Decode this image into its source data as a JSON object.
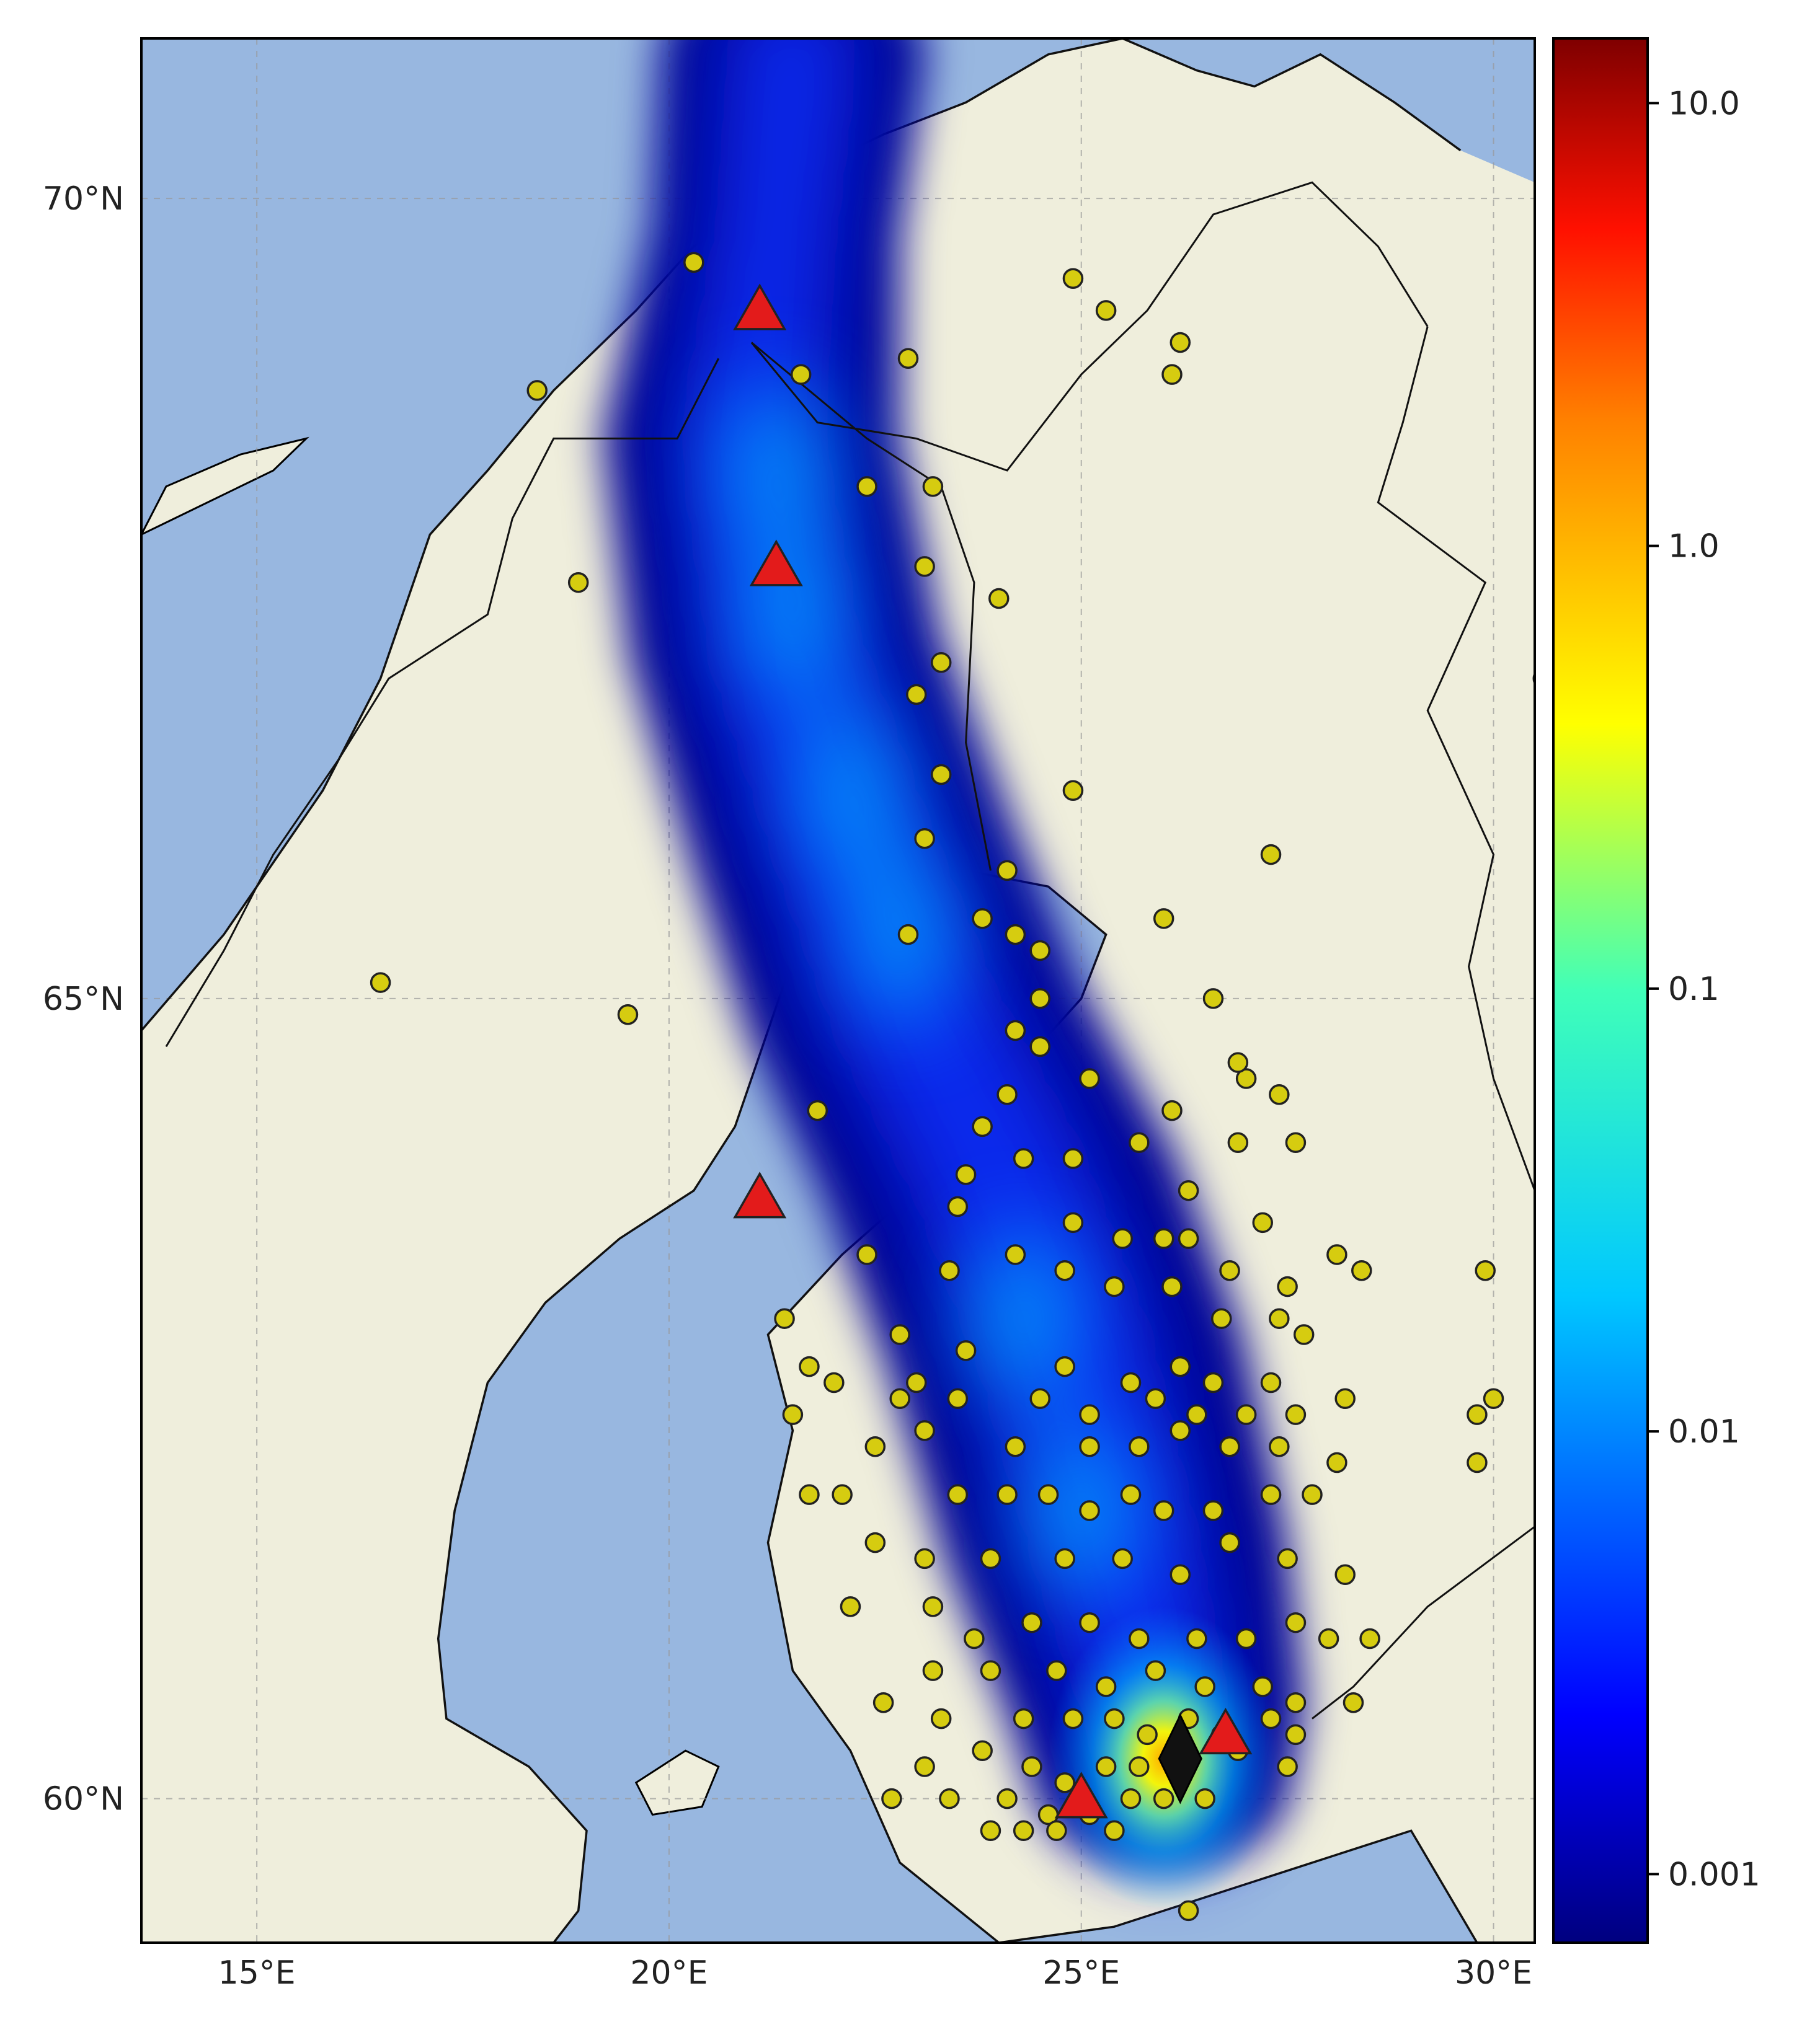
{
  "map": {
    "extent": {
      "lon_min": 13.6,
      "lon_max": 30.5,
      "lat_min": 59.1,
      "lat_max": 71.0
    },
    "lat_ticks": [
      {
        "value": 70,
        "label": "70°N"
      },
      {
        "value": 65,
        "label": "65°N"
      },
      {
        "value": 60,
        "label": "60°N"
      }
    ],
    "lon_ticks": [
      {
        "value": 15,
        "label": "15°E"
      },
      {
        "value": 20,
        "label": "20°E"
      },
      {
        "value": 25,
        "label": "25°E"
      },
      {
        "value": 30,
        "label": "30°E"
      }
    ],
    "colors": {
      "sea": "#98b7e0",
      "land": "#efeedc",
      "plume_low": "#00008f"
    },
    "plume_centerline": [
      {
        "lon": 21.5,
        "lat": 70.9,
        "width_deg": 3.2
      },
      {
        "lon": 21.3,
        "lat": 69.8,
        "width_deg": 3.0
      },
      {
        "lon": 21.0,
        "lat": 68.5,
        "width_deg": 3.6
      },
      {
        "lon": 21.4,
        "lat": 67.2,
        "width_deg": 3.8
      },
      {
        "lon": 22.2,
        "lat": 66.0,
        "width_deg": 4.0
      },
      {
        "lon": 23.0,
        "lat": 64.9,
        "width_deg": 4.2
      },
      {
        "lon": 24.0,
        "lat": 63.9,
        "width_deg": 4.4
      },
      {
        "lon": 24.8,
        "lat": 62.8,
        "width_deg": 4.4
      },
      {
        "lon": 25.4,
        "lat": 61.6,
        "width_deg": 4.2
      },
      {
        "lon": 25.9,
        "lat": 60.6,
        "width_deg": 3.6
      },
      {
        "lon": 26.0,
        "lat": 60.0,
        "width_deg": 3.0
      }
    ],
    "hotspot": {
      "lon": 26.0,
      "lat": 60.25
    }
  },
  "colorbar": {
    "scale": "log",
    "vmin": 0.0007,
    "vmax": 14,
    "ticks": [
      {
        "value": 10.0,
        "label": "10.0"
      },
      {
        "value": 1.0,
        "label": "1.0"
      },
      {
        "value": 0.1,
        "label": "0.1"
      },
      {
        "value": 0.01,
        "label": "0.01"
      },
      {
        "value": 0.001,
        "label": "0.001"
      }
    ],
    "colormap": "jet"
  },
  "markers": {
    "stations_color": "#d6cc10",
    "triangles_color": "#e31b1b",
    "diamond_color": "#111111",
    "triangles": [
      {
        "lon": 21.1,
        "lat": 69.3
      },
      {
        "lon": 21.3,
        "lat": 67.7
      },
      {
        "lon": 21.1,
        "lat": 63.75
      },
      {
        "lon": 25.0,
        "lat": 60.0
      },
      {
        "lon": 26.75,
        "lat": 60.4
      }
    ],
    "diamond": {
      "lon": 26.2,
      "lat": 60.25
    },
    "stations": [
      [
        20.3,
        69.6
      ],
      [
        22.9,
        69.0
      ],
      [
        18.4,
        68.8
      ],
      [
        21.6,
        68.9
      ],
      [
        25.3,
        69.3
      ],
      [
        24.9,
        69.5
      ],
      [
        26.2,
        69.1
      ],
      [
        26.1,
        68.9
      ],
      [
        22.4,
        68.2
      ],
      [
        23.2,
        68.2
      ],
      [
        18.9,
        67.6
      ],
      [
        23.1,
        67.7
      ],
      [
        24.0,
        67.5
      ],
      [
        23.3,
        67.1
      ],
      [
        23.0,
        66.9
      ],
      [
        23.3,
        66.4
      ],
      [
        23.1,
        66.0
      ],
      [
        24.1,
        65.8
      ],
      [
        24.9,
        66.3
      ],
      [
        26.0,
        65.5
      ],
      [
        26.6,
        65.0
      ],
      [
        22.9,
        65.4
      ],
      [
        23.8,
        65.5
      ],
      [
        24.2,
        65.4
      ],
      [
        24.5,
        65.3
      ],
      [
        24.5,
        65.0
      ],
      [
        24.2,
        64.8
      ],
      [
        24.5,
        64.7
      ],
      [
        27.0,
        64.5
      ],
      [
        16.5,
        65.1
      ],
      [
        19.5,
        64.9
      ],
      [
        21.8,
        64.3
      ],
      [
        25.1,
        64.5
      ],
      [
        26.1,
        64.3
      ],
      [
        26.9,
        64.6
      ],
      [
        27.4,
        64.4
      ],
      [
        24.1,
        64.4
      ],
      [
        23.8,
        64.2
      ],
      [
        23.6,
        63.9
      ],
      [
        24.3,
        64.0
      ],
      [
        24.9,
        64.0
      ],
      [
        25.7,
        64.1
      ],
      [
        26.3,
        63.8
      ],
      [
        26.9,
        64.1
      ],
      [
        27.6,
        64.1
      ],
      [
        23.5,
        63.7
      ],
      [
        24.9,
        63.6
      ],
      [
        25.5,
        63.5
      ],
      [
        26.0,
        63.5
      ],
      [
        26.3,
        63.5
      ],
      [
        26.8,
        63.3
      ],
      [
        27.2,
        63.6
      ],
      [
        27.5,
        63.2
      ],
      [
        28.1,
        63.4
      ],
      [
        28.4,
        63.3
      ],
      [
        29.9,
        63.3
      ],
      [
        22.4,
        63.4
      ],
      [
        23.4,
        63.3
      ],
      [
        24.2,
        63.4
      ],
      [
        24.8,
        63.3
      ],
      [
        25.4,
        63.2
      ],
      [
        26.1,
        63.2
      ],
      [
        26.7,
        63.0
      ],
      [
        27.4,
        63.0
      ],
      [
        27.7,
        62.9
      ],
      [
        22.8,
        62.9
      ],
      [
        23.6,
        62.8
      ],
      [
        24.8,
        62.7
      ],
      [
        25.6,
        62.6
      ],
      [
        26.2,
        62.7
      ],
      [
        26.6,
        62.6
      ],
      [
        27.3,
        62.6
      ],
      [
        21.4,
        63.0
      ],
      [
        21.7,
        62.7
      ],
      [
        22.0,
        62.6
      ],
      [
        22.8,
        62.5
      ],
      [
        23.0,
        62.6
      ],
      [
        23.5,
        62.5
      ],
      [
        24.5,
        62.5
      ],
      [
        25.1,
        62.4
      ],
      [
        25.9,
        62.5
      ],
      [
        26.4,
        62.4
      ],
      [
        27.0,
        62.4
      ],
      [
        27.6,
        62.4
      ],
      [
        28.2,
        62.5
      ],
      [
        21.5,
        62.4
      ],
      [
        22.5,
        62.2
      ],
      [
        23.1,
        62.3
      ],
      [
        24.2,
        62.2
      ],
      [
        25.1,
        62.2
      ],
      [
        25.7,
        62.2
      ],
      [
        26.2,
        62.3
      ],
      [
        26.8,
        62.2
      ],
      [
        27.4,
        62.2
      ],
      [
        28.1,
        62.1
      ],
      [
        29.8,
        62.4
      ],
      [
        30.0,
        62.5
      ],
      [
        21.7,
        61.9
      ],
      [
        22.1,
        61.9
      ],
      [
        23.5,
        61.9
      ],
      [
        24.1,
        61.9
      ],
      [
        24.6,
        61.9
      ],
      [
        25.1,
        61.8
      ],
      [
        25.6,
        61.9
      ],
      [
        26.0,
        61.8
      ],
      [
        26.6,
        61.8
      ],
      [
        27.3,
        61.9
      ],
      [
        27.8,
        61.9
      ],
      [
        29.8,
        62.1
      ],
      [
        22.5,
        61.6
      ],
      [
        23.1,
        61.5
      ],
      [
        23.9,
        61.5
      ],
      [
        24.8,
        61.5
      ],
      [
        25.5,
        61.5
      ],
      [
        26.2,
        61.4
      ],
      [
        26.8,
        61.6
      ],
      [
        27.5,
        61.5
      ],
      [
        28.2,
        61.4
      ],
      [
        22.2,
        61.2
      ],
      [
        23.2,
        61.2
      ],
      [
        23.7,
        61.0
      ],
      [
        24.4,
        61.1
      ],
      [
        25.1,
        61.1
      ],
      [
        25.7,
        61.0
      ],
      [
        26.4,
        61.0
      ],
      [
        27.0,
        61.0
      ],
      [
        27.6,
        61.1
      ],
      [
        28.0,
        61.0
      ],
      [
        23.2,
        60.8
      ],
      [
        23.9,
        60.8
      ],
      [
        24.7,
        60.8
      ],
      [
        25.3,
        60.7
      ],
      [
        25.9,
        60.8
      ],
      [
        26.5,
        60.7
      ],
      [
        27.2,
        60.7
      ],
      [
        27.6,
        60.6
      ],
      [
        22.6,
        60.6
      ],
      [
        23.3,
        60.5
      ],
      [
        24.3,
        60.5
      ],
      [
        24.9,
        60.5
      ],
      [
        25.4,
        60.5
      ],
      [
        25.8,
        60.4
      ],
      [
        26.3,
        60.5
      ],
      [
        26.7,
        60.4
      ],
      [
        27.3,
        60.5
      ],
      [
        27.6,
        60.4
      ],
      [
        23.1,
        60.2
      ],
      [
        23.8,
        60.3
      ],
      [
        24.4,
        60.2
      ],
      [
        24.8,
        60.1
      ],
      [
        25.3,
        60.2
      ],
      [
        25.7,
        60.2
      ],
      [
        26.2,
        60.3
      ],
      [
        26.9,
        60.3
      ],
      [
        27.5,
        60.2
      ],
      [
        22.7,
        60.0
      ],
      [
        23.4,
        60.0
      ],
      [
        24.1,
        60.0
      ],
      [
        24.6,
        59.9
      ],
      [
        25.1,
        59.9
      ],
      [
        25.6,
        60.0
      ],
      [
        26.0,
        60.0
      ],
      [
        26.5,
        60.0
      ],
      [
        23.9,
        59.8
      ],
      [
        24.3,
        59.8
      ],
      [
        24.7,
        59.8
      ],
      [
        25.4,
        59.8
      ],
      [
        26.3,
        59.3
      ],
      [
        30.6,
        67.0
      ],
      [
        27.3,
        65.9
      ],
      [
        28.3,
        60.6
      ],
      [
        28.5,
        61.0
      ]
    ]
  }
}
